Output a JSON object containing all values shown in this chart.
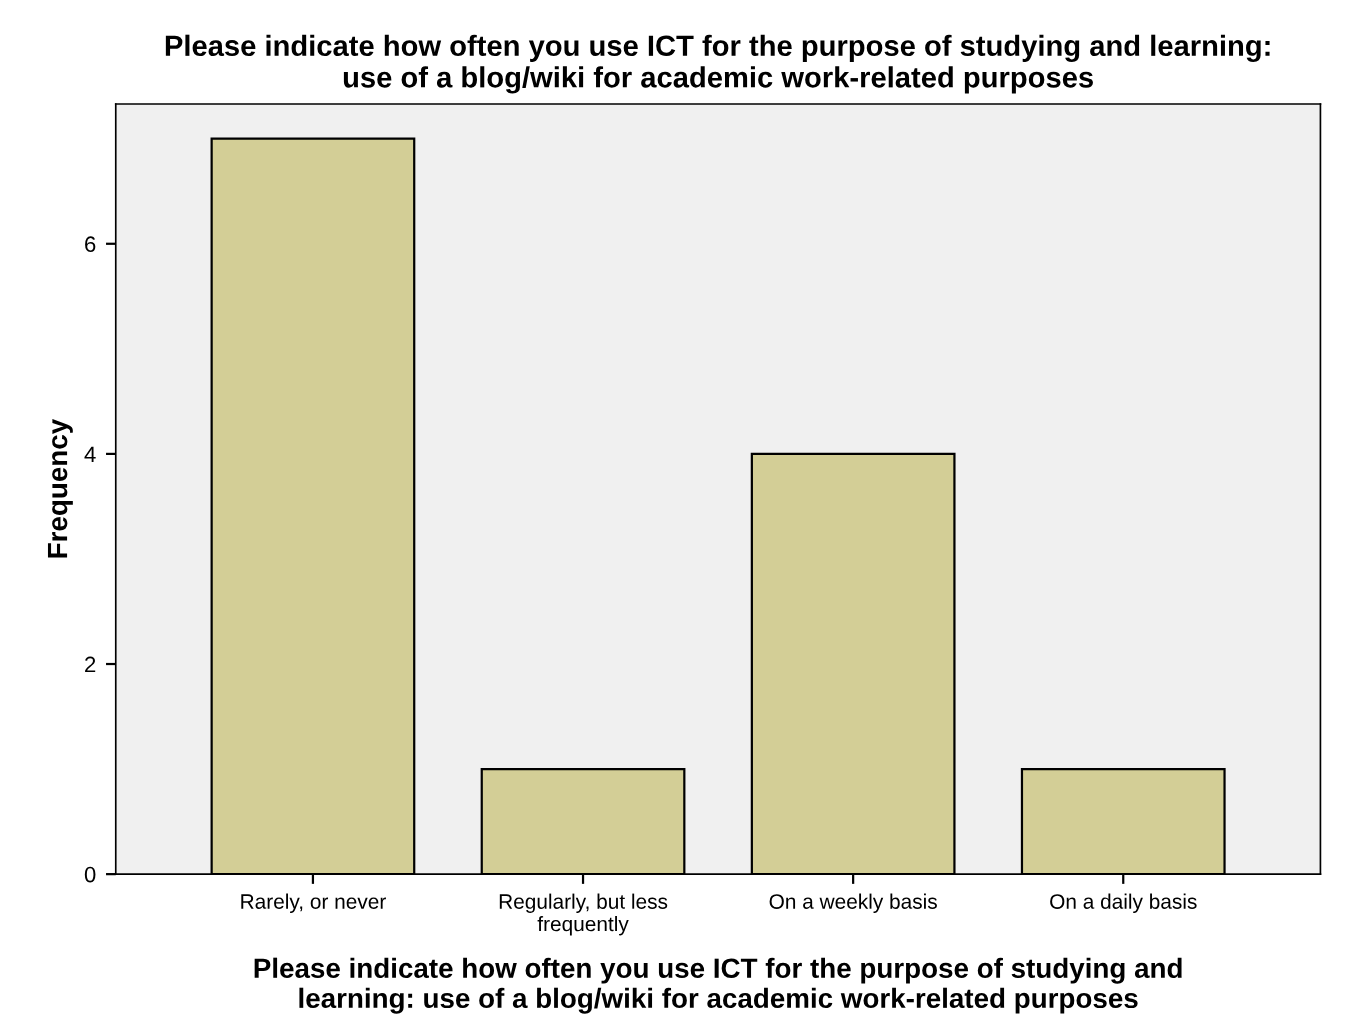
{
  "chart_data": {
    "type": "bar",
    "title": "Please indicate how often you use ICT for the purpose of studying and learning:\nuse of a blog/wiki for academic work-related purposes",
    "xlabel": "Please indicate how often you use ICT for the purpose of studying and\nlearning: use of a blog/wiki for academic work-related purposes",
    "ylabel": "Frequency",
    "categories": [
      "Rarely, or never",
      "Regularly, but less\nfrequently",
      "On a weekly basis",
      "On a daily basis"
    ],
    "values": [
      7,
      1,
      4,
      1
    ],
    "color": "#d3ce96",
    "ylim": [
      0,
      7.33
    ],
    "yticks": [
      0,
      2,
      4,
      6
    ],
    "grid": false,
    "legend": false
  }
}
